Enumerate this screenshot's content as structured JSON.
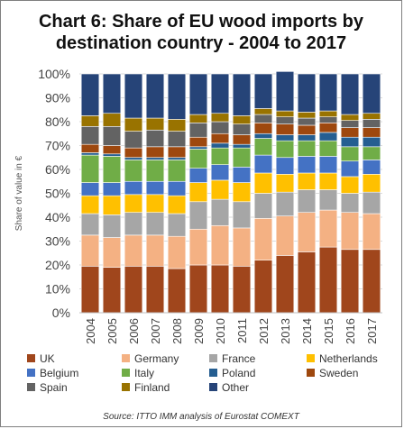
{
  "chart_data": {
    "type": "bar",
    "stacked": true,
    "title_line1": "Chart 6: Share of EU wood imports by",
    "title_line2": "destination country - 2004 to 2017",
    "ylabel": "Share of value in €",
    "xlabel": "",
    "ylim": [
      0,
      100
    ],
    "yticks": [
      "0%",
      "10%",
      "20%",
      "30%",
      "40%",
      "50%",
      "60%",
      "70%",
      "80%",
      "90%",
      "100%"
    ],
    "categories": [
      "2004",
      "2005",
      "2006",
      "2007",
      "2008",
      "2009",
      "2010",
      "2011",
      "2012",
      "2013",
      "2014",
      "2015",
      "2016",
      "2017"
    ],
    "series": [
      {
        "name": "UK",
        "color": "#a0461c",
        "values": [
          19.5,
          19.0,
          19.5,
          19.5,
          18.5,
          20.0,
          20.0,
          19.5,
          22.0,
          24.0,
          25.5,
          27.5,
          26.5,
          26.5
        ]
      },
      {
        "name": "Germany",
        "color": "#f4b183",
        "values": [
          13.0,
          12.5,
          13.0,
          13.0,
          13.5,
          15.0,
          16.5,
          16.0,
          17.5,
          16.5,
          16.5,
          15.5,
          15.5,
          15.0
        ]
      },
      {
        "name": "France",
        "color": "#a6a6a6",
        "values": [
          9.0,
          9.5,
          9.5,
          9.5,
          9.5,
          11.5,
          11.0,
          11.0,
          10.5,
          10.0,
          9.5,
          8.5,
          8.0,
          9.0
        ]
      },
      {
        "name": "Netherlands",
        "color": "#ffc000",
        "values": [
          7.5,
          8.0,
          7.5,
          7.5,
          7.5,
          8.0,
          8.0,
          8.0,
          8.5,
          7.5,
          7.0,
          7.0,
          7.0,
          7.5
        ]
      },
      {
        "name": "Belgium",
        "color": "#4472c4",
        "values": [
          5.5,
          5.5,
          5.5,
          5.5,
          6.0,
          6.0,
          6.5,
          6.5,
          7.5,
          7.0,
          7.0,
          7.0,
          6.5,
          6.0
        ]
      },
      {
        "name": "Italy",
        "color": "#70ad47",
        "values": [
          11.5,
          11.0,
          9.0,
          9.0,
          9.0,
          8.0,
          7.0,
          8.0,
          7.0,
          7.0,
          6.5,
          6.5,
          6.0,
          5.5
        ]
      },
      {
        "name": "Poland",
        "color": "#255e91",
        "values": [
          1.0,
          1.0,
          1.0,
          1.0,
          1.0,
          1.0,
          2.0,
          1.5,
          2.0,
          2.5,
          2.5,
          3.5,
          4.0,
          4.0
        ]
      },
      {
        "name": "Sweden",
        "color": "#9e480e",
        "values": [
          3.5,
          3.5,
          4.0,
          4.5,
          4.5,
          4.0,
          4.0,
          4.0,
          4.5,
          4.5,
          4.0,
          4.0,
          4.0,
          4.0
        ]
      },
      {
        "name": "Spain",
        "color": "#636363",
        "values": [
          7.5,
          8.0,
          7.0,
          7.0,
          6.5,
          6.0,
          5.0,
          4.5,
          3.5,
          3.0,
          3.0,
          2.5,
          3.0,
          3.5
        ]
      },
      {
        "name": "Finland",
        "color": "#997300",
        "values": [
          4.5,
          5.5,
          5.5,
          5.0,
          5.0,
          3.5,
          3.5,
          3.5,
          2.5,
          2.5,
          2.5,
          2.5,
          2.5,
          2.5
        ]
      },
      {
        "name": "Other",
        "color": "#264478",
        "values": [
          17.5,
          16.5,
          18.5,
          18.5,
          19.0,
          17.0,
          16.5,
          17.5,
          14.5,
          16.5,
          16.0,
          15.5,
          17.0,
          16.5
        ]
      }
    ],
    "legend": {
      "position": "bottom"
    },
    "grid": true,
    "source": "Source: ITTO IMM analysis of Eurostat COMEXT"
  }
}
